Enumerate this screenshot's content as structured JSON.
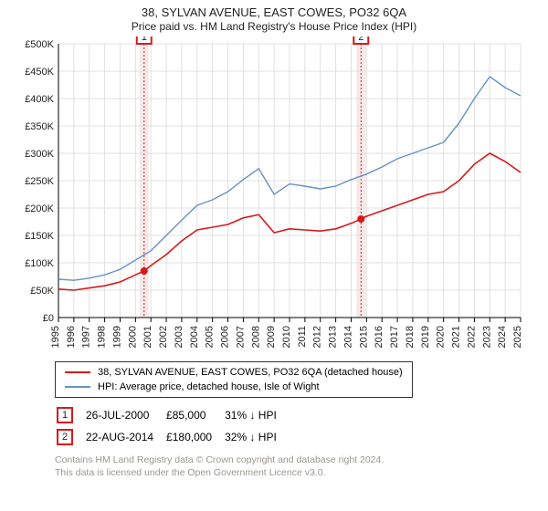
{
  "title": "38, SYLVAN AVENUE, EAST COWES, PO32 6QA",
  "subtitle": "Price paid vs. HM Land Registry's House Price Index (HPI)",
  "chart": {
    "type": "line",
    "background_color": "#ffffff",
    "axis_color": "#000000",
    "grid_color": "#e0e0e0",
    "y": {
      "min": 0,
      "max": 500000,
      "step": 50000,
      "prefix": "£",
      "ticks": [
        "£0",
        "£50K",
        "£100K",
        "£150K",
        "£200K",
        "£250K",
        "£300K",
        "£350K",
        "£400K",
        "£450K",
        "£500K"
      ]
    },
    "x": {
      "min": 1995,
      "max": 2025,
      "ticks": [
        1995,
        1996,
        1997,
        1998,
        1999,
        2000,
        2001,
        2002,
        2003,
        2004,
        2005,
        2006,
        2007,
        2008,
        2009,
        2010,
        2011,
        2012,
        2013,
        2014,
        2015,
        2016,
        2017,
        2018,
        2019,
        2020,
        2021,
        2022,
        2023,
        2024,
        2025
      ]
    },
    "series_property": {
      "label": "38, SYLVAN AVENUE, EAST COWES, PO32 6QA (detached house)",
      "color": "#d7191c",
      "line_width": 1.6,
      "data": [
        [
          1995,
          52000
        ],
        [
          1996,
          50000
        ],
        [
          1997,
          54000
        ],
        [
          1998,
          58000
        ],
        [
          1999,
          65000
        ],
        [
          2000,
          78000
        ],
        [
          2000.56,
          85000
        ],
        [
          2001,
          95000
        ],
        [
          2002,
          115000
        ],
        [
          2003,
          140000
        ],
        [
          2004,
          160000
        ],
        [
          2005,
          165000
        ],
        [
          2006,
          170000
        ],
        [
          2007,
          182000
        ],
        [
          2008,
          188000
        ],
        [
          2009,
          155000
        ],
        [
          2010,
          162000
        ],
        [
          2011,
          160000
        ],
        [
          2012,
          158000
        ],
        [
          2013,
          162000
        ],
        [
          2014,
          172000
        ],
        [
          2014.64,
          180000
        ],
        [
          2015,
          185000
        ],
        [
          2016,
          195000
        ],
        [
          2017,
          205000
        ],
        [
          2018,
          215000
        ],
        [
          2019,
          225000
        ],
        [
          2020,
          230000
        ],
        [
          2021,
          250000
        ],
        [
          2022,
          280000
        ],
        [
          2023,
          300000
        ],
        [
          2024,
          285000
        ],
        [
          2025,
          265000
        ]
      ]
    },
    "series_hpi": {
      "label": "HPI: Average price, detached house, Isle of Wight",
      "color": "#6891c6",
      "line_width": 1.4,
      "data": [
        [
          1995,
          70000
        ],
        [
          1996,
          68000
        ],
        [
          1997,
          72000
        ],
        [
          1998,
          78000
        ],
        [
          1999,
          88000
        ],
        [
          2000,
          105000
        ],
        [
          2001,
          122000
        ],
        [
          2002,
          150000
        ],
        [
          2003,
          178000
        ],
        [
          2004,
          205000
        ],
        [
          2005,
          215000
        ],
        [
          2006,
          230000
        ],
        [
          2007,
          252000
        ],
        [
          2008,
          272000
        ],
        [
          2009,
          225000
        ],
        [
          2010,
          244000
        ],
        [
          2011,
          240000
        ],
        [
          2012,
          235000
        ],
        [
          2013,
          240000
        ],
        [
          2014,
          252000
        ],
        [
          2015,
          262000
        ],
        [
          2016,
          275000
        ],
        [
          2017,
          290000
        ],
        [
          2018,
          300000
        ],
        [
          2019,
          310000
        ],
        [
          2020,
          320000
        ],
        [
          2021,
          355000
        ],
        [
          2022,
          400000
        ],
        [
          2023,
          440000
        ],
        [
          2024,
          420000
        ],
        [
          2025,
          405000
        ]
      ]
    },
    "markers": [
      {
        "num": "1",
        "year": 2000.56,
        "value": 85000,
        "badge_color": "#d7191c",
        "band_color": "#f7e9e9"
      },
      {
        "num": "2",
        "year": 2014.64,
        "value": 180000,
        "badge_color": "#d7191c",
        "band_color": "#f7e9e9"
      }
    ]
  },
  "legend": {
    "row1": "38, SYLVAN AVENUE, EAST COWES, PO32 6QA (detached house)",
    "row2": "HPI: Average price, detached house, Isle of Wight"
  },
  "events": [
    {
      "num": "1",
      "date": "26-JUL-2000",
      "price": "£85,000",
      "delta": "31% ↓ HPI"
    },
    {
      "num": "2",
      "date": "22-AUG-2014",
      "price": "£180,000",
      "delta": "32% ↓ HPI"
    }
  ],
  "footer_line1": "Contains HM Land Registry data © Crown copyright and database right 2024.",
  "footer_line2": "This data is licensed under the Open Government Licence v3.0."
}
